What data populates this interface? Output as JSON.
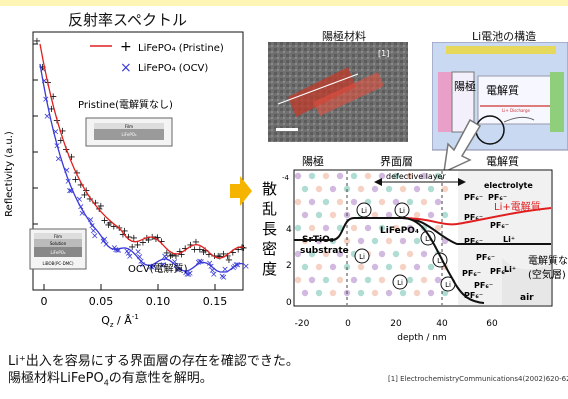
{
  "banner_color": "#fdf5b4",
  "left_title": "反射率スペクトル",
  "cathode_title": "陽極材料",
  "cell_title": "Li電池の構造",
  "plot": {
    "ylabel": "Reflectivity (a.u.)",
    "xlabel": "Q",
    "xlabel_sub": "z",
    "xlabel_unit": " / Å",
    "xlabel_sup": "-1",
    "xticks": [
      "0",
      "0.05",
      "0.10",
      "0.15"
    ],
    "legend": [
      {
        "marker": "+",
        "name": "LiFePO₄ (Pristine)",
        "color": "#e02020"
      },
      {
        "marker": "×",
        "name": "LiFePO₄ (OCV)",
        "color": "#3a3ad8"
      }
    ],
    "ann_pristine": "Pristine(電解質なし)",
    "ann_ocv": "OCV(電解質)",
    "inset1_layers": [
      "Film",
      "LiFePO₄"
    ],
    "inset2_layers": [
      "Film",
      "Solution",
      "LiFePO₄"
    ],
    "inset2_caption": "LiBOB(PC-DMC)"
  },
  "photo_ref": "[1]",
  "cell": {
    "anode": "陽極",
    "electrolyte": "電解質",
    "discharge": "Li+ Discharge"
  },
  "profile": {
    "header_anode": "陽極",
    "header_interface": "界面層",
    "header_electrolyte": "電解質",
    "ylabel_chars": [
      "散",
      "乱",
      "長",
      "密",
      "度"
    ],
    "ytick_top": "-4",
    "yticks": [
      "4",
      "2",
      "0"
    ],
    "xticks": [
      "-20",
      "0",
      "20",
      "40",
      "60"
    ],
    "xlabel": "depth / nm",
    "substrate": [
      "SrTiO₃",
      "substrate"
    ],
    "defective": "defective layer",
    "lifepo": "LiFePO₄",
    "electrolyte_en": "electrolyte",
    "li_electrolyte": "Li+電解質",
    "no_electrolyte": "電解質なし",
    "air_layer": "(空気層)",
    "air": "air",
    "pf6": "PF₆⁻",
    "li": "Li⁺",
    "li_circle": "Li"
  },
  "note1": "Li⁺出入を容易にする界面層の存在を確認できた。",
  "note2_pre": "陽極材料LiFePO",
  "note2_sub": "4",
  "note2_post": "の有意性を解明。",
  "reference": "[1] ElectrochemistryCommunications4(2002)620-625",
  "colors": {
    "red": "#e02020",
    "blue": "#3a3ad8",
    "arrow": "#f5b400",
    "black": "#111111"
  }
}
